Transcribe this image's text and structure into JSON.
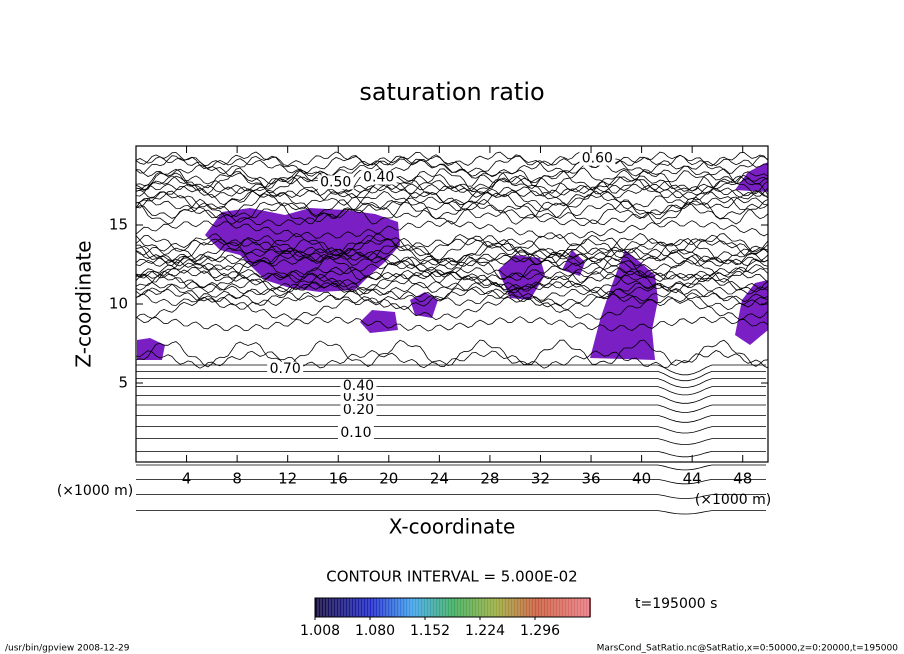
{
  "chart_data": {
    "type": "contour",
    "title": "saturation ratio",
    "x_label": "X-coordinate",
    "y_label": "Z-coordinate",
    "x_unit": "(×1000 m)",
    "xlim": [
      0,
      50
    ],
    "xticks": [
      4,
      8,
      12,
      16,
      20,
      24,
      28,
      32,
      36,
      40,
      44,
      48
    ],
    "ylim": [
      0,
      20
    ],
    "yticks": [
      5,
      10,
      15
    ],
    "contour_interval": "CONTOUR INTERVAL = 5.000E-02",
    "time_label": "t=195000 s",
    "contour_labels": [
      {
        "value": 0.1,
        "label": "0.10",
        "x": 17.4,
        "y": 1.84
      },
      {
        "value": 0.2,
        "label": "0.20",
        "x": 17.6,
        "y": 3.3
      },
      {
        "value": 0.3,
        "label": "0.30",
        "x": 17.6,
        "y": 4.1
      },
      {
        "value": 0.4,
        "label": "0.40",
        "x": 17.6,
        "y": 4.8
      },
      {
        "value": 0.7,
        "label": "0.70",
        "x": 11.8,
        "y": 5.9
      },
      {
        "value": 0.5,
        "label": "0.50",
        "x": 15.8,
        "y": 17.7
      },
      {
        "value": 0.4,
        "label": "0.40",
        "x": 19.2,
        "y": 18.0
      },
      {
        "value": 0.6,
        "label": "0.60",
        "x": 36.5,
        "y": 19.2
      }
    ],
    "colorbar": {
      "lim": [
        1.008,
        1.368
      ],
      "ticks": [
        1.008,
        {
          "value": 1.08,
          "label": "1.080"
        },
        1.152,
        1.224,
        1.296
      ]
    },
    "footer_left": "/usr/bin/gpview  2008-12-29",
    "footer_right": "MarsCond_SatRatio.nc@SatRatio,x=0:50000,z=0:20000,t=195000"
  }
}
